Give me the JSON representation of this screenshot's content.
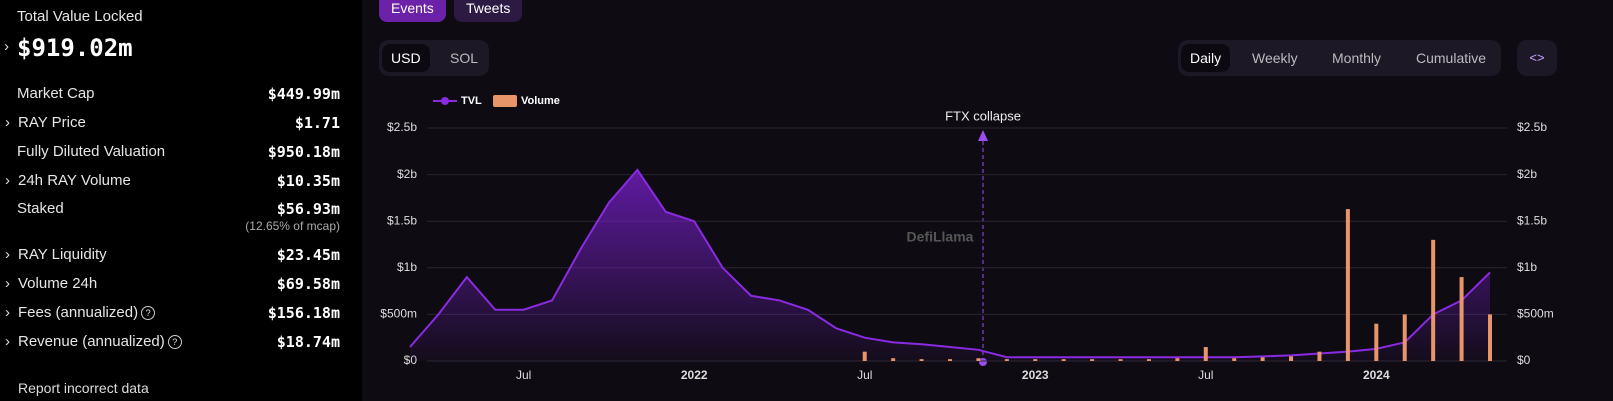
{
  "sidebar": {
    "tvl_label": "Total Value Locked",
    "tvl_value": "$919.02m",
    "rows": [
      {
        "label": "Market Cap",
        "value": "$449.99m"
      },
      {
        "label": "RAY Price",
        "value": "$1.71"
      },
      {
        "label": "Fully Diluted Valuation",
        "value": "$950.18m"
      },
      {
        "label": "24h RAY Volume",
        "value": "$10.35m"
      },
      {
        "label": "Staked",
        "value": "$56.93m",
        "note": "(12.65% of mcap)"
      },
      {
        "label": "RAY Liquidity",
        "value": "$23.45m"
      },
      {
        "label": "Volume 24h",
        "value": "$69.58m"
      },
      {
        "label": "Fees (annualized)",
        "value": "$156.18m"
      },
      {
        "label": "Revenue (annualized)",
        "value": "$18.74m"
      }
    ],
    "report": "Report incorrect data"
  },
  "tabs": [
    "Events",
    "Tweets"
  ],
  "currency": [
    "USD",
    "SOL"
  ],
  "periods": [
    "Daily",
    "Weekly",
    "Monthly",
    "Cumulative"
  ],
  "embed": "<>",
  "chart_data": {
    "type": "area",
    "annotation": "FTX collapse",
    "watermark": "DefiLlama",
    "categories": [
      null,
      null,
      null,
      null,
      "Jul",
      null,
      null,
      null,
      null,
      null,
      "2022",
      null,
      null,
      null,
      null,
      null,
      "Jul",
      null,
      null,
      null,
      null,
      null,
      "2023",
      null,
      null,
      null,
      null,
      null,
      "Jul",
      null,
      null,
      null,
      null,
      null,
      "2024",
      null,
      null,
      null,
      null
    ],
    "series": [
      {
        "name": "TVL",
        "color": "#8a2be2",
        "values": [
          0.15,
          0.5,
          0.9,
          0.55,
          0.55,
          0.65,
          1.2,
          1.7,
          2.05,
          1.6,
          1.5,
          1.0,
          0.7,
          0.65,
          0.55,
          0.35,
          0.25,
          0.2,
          0.18,
          0.15,
          0.12,
          0.04,
          0.04,
          0.04,
          0.04,
          0.04,
          0.04,
          0.04,
          0.04,
          0.04,
          0.05,
          0.06,
          0.08,
          0.1,
          0.13,
          0.2,
          0.5,
          0.65,
          0.95
        ]
      },
      {
        "name": "Volume",
        "color": "#e8956a",
        "axis": "y2",
        "values": [
          0,
          0,
          0,
          0,
          0,
          0,
          0,
          0,
          0,
          0,
          0,
          0,
          0,
          0,
          0,
          0,
          0.1,
          0.03,
          0.02,
          0.02,
          0.03,
          0.02,
          0.02,
          0.02,
          0.02,
          0.02,
          0.02,
          0.03,
          0.15,
          0.03,
          0.04,
          0.05,
          0.1,
          1.63,
          0.4,
          0.5,
          1.3,
          0.9,
          0.5
        ]
      }
    ],
    "ylim": [
      0,
      2.5
    ],
    "y2lim": [
      0,
      2.5
    ],
    "yticks": [
      {
        "value": 0,
        "label": "$0"
      },
      {
        "value": 0.5,
        "label": "$500m"
      },
      {
        "value": 1,
        "label": "$1b"
      },
      {
        "value": 1.5,
        "label": "$1.5b"
      },
      {
        "value": 2,
        "label": "$2b"
      },
      {
        "value": 2.5,
        "label": "$2.5b"
      }
    ],
    "y2ticks": [
      {
        "value": 0,
        "label": "$0"
      },
      {
        "value": 0.5,
        "label": "$500m"
      },
      {
        "value": 1,
        "label": "$1b"
      },
      {
        "value": 1.5,
        "label": "$1.5b"
      },
      {
        "value": 2,
        "label": "$2b"
      },
      {
        "value": 2.5,
        "label": "$2.5b"
      }
    ],
    "grid": true
  }
}
